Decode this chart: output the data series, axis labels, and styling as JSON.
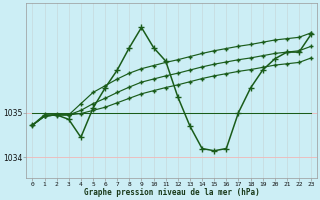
{
  "background_color": "#cceef5",
  "grid_color_v": "#c8dde0",
  "grid_color_h": "#f0b8b8",
  "line_color": "#1a5c1a",
  "x_ticks": [
    0,
    1,
    2,
    3,
    4,
    5,
    6,
    7,
    8,
    9,
    10,
    11,
    12,
    13,
    14,
    15,
    16,
    17,
    18,
    19,
    20,
    21,
    22,
    23
  ],
  "xlabel": "Graphe pression niveau de la mer (hPa)",
  "ylim": [
    1033.55,
    1037.45
  ],
  "xlim": [
    -0.5,
    23.5
  ],
  "yticks": [
    1034,
    1035
  ],
  "series_volatile": [
    1034.72,
    1034.95,
    1034.95,
    1034.85,
    1034.45,
    1035.1,
    1035.55,
    1035.95,
    1036.45,
    1036.9,
    1036.45,
    1036.15,
    1035.35,
    1034.7,
    1034.2,
    1034.15,
    1034.2,
    1035.0,
    1035.55,
    1035.95,
    1036.2,
    1036.35,
    1036.35,
    1036.75
  ],
  "series_trend_top": [
    1034.72,
    1034.92,
    1034.95,
    1034.95,
    1035.2,
    1035.45,
    1035.6,
    1035.75,
    1035.88,
    1035.98,
    1036.05,
    1036.12,
    1036.18,
    1036.25,
    1036.32,
    1036.38,
    1036.43,
    1036.48,
    1036.52,
    1036.57,
    1036.62,
    1036.65,
    1036.68,
    1036.78
  ],
  "series_trend_mid": [
    1034.72,
    1034.92,
    1034.95,
    1034.95,
    1035.05,
    1035.2,
    1035.32,
    1035.45,
    1035.57,
    1035.68,
    1035.75,
    1035.82,
    1035.88,
    1035.95,
    1036.02,
    1036.08,
    1036.13,
    1036.18,
    1036.22,
    1036.27,
    1036.32,
    1036.35,
    1036.38,
    1036.48
  ],
  "series_trend_bot": [
    1034.72,
    1034.92,
    1034.95,
    1034.95,
    1034.98,
    1035.05,
    1035.12,
    1035.22,
    1035.32,
    1035.42,
    1035.49,
    1035.56,
    1035.62,
    1035.69,
    1035.76,
    1035.82,
    1035.87,
    1035.92,
    1035.96,
    1036.01,
    1036.06,
    1036.09,
    1036.12,
    1036.22
  ],
  "series_flat": [
    1035.0,
    1035.0,
    1035.0,
    1035.0,
    1035.0,
    1035.0,
    1035.0,
    1035.0,
    1035.0,
    1035.0,
    1035.0,
    1035.0,
    1035.0,
    1035.0,
    1035.0,
    1035.0,
    1035.0,
    1035.0,
    1035.0,
    1035.0,
    1035.0,
    1035.0,
    1035.0,
    1035.0
  ]
}
